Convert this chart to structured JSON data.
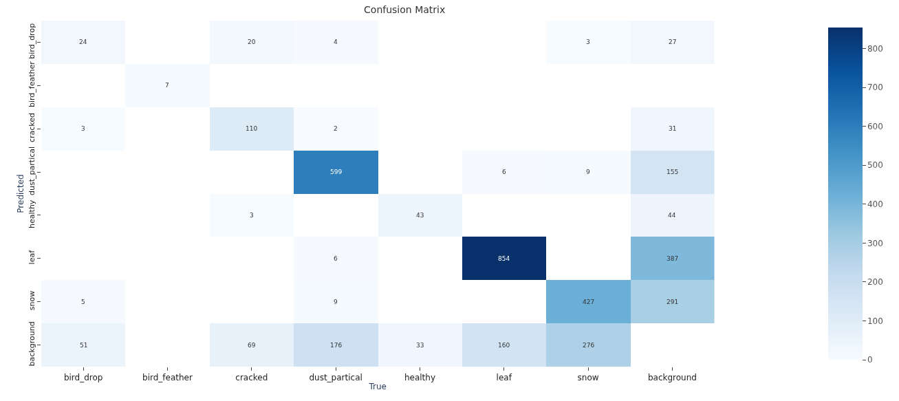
{
  "chart_data": {
    "type": "heatmap",
    "title": "Confusion Matrix",
    "xlabel": "True",
    "ylabel": "Predicted",
    "categories": [
      "bird_drop",
      "bird_feather",
      "cracked",
      "dust_partical",
      "healthy",
      "leaf",
      "snow",
      "background"
    ],
    "y_categories": [
      "bird_drop",
      "bird_feather",
      "cracked",
      "dust_partical",
      "healthy",
      "leaf",
      "snow",
      "background"
    ],
    "cells": [
      [
        24,
        null,
        20,
        4,
        null,
        null,
        3,
        27
      ],
      [
        null,
        7,
        null,
        null,
        null,
        null,
        null,
        null
      ],
      [
        3,
        null,
        110,
        2,
        null,
        null,
        null,
        31
      ],
      [
        null,
        null,
        null,
        599,
        null,
        6,
        9,
        155
      ],
      [
        null,
        null,
        3,
        null,
        43,
        null,
        null,
        44
      ],
      [
        null,
        null,
        null,
        6,
        null,
        854,
        null,
        387
      ],
      [
        5,
        null,
        null,
        9,
        null,
        null,
        427,
        291
      ],
      [
        51,
        null,
        69,
        176,
        33,
        160,
        276,
        null
      ]
    ],
    "data_labels": true,
    "clim": [
      0,
      854
    ],
    "cticks": [
      0,
      100,
      200,
      300,
      400,
      500,
      600,
      700,
      800
    ]
  }
}
